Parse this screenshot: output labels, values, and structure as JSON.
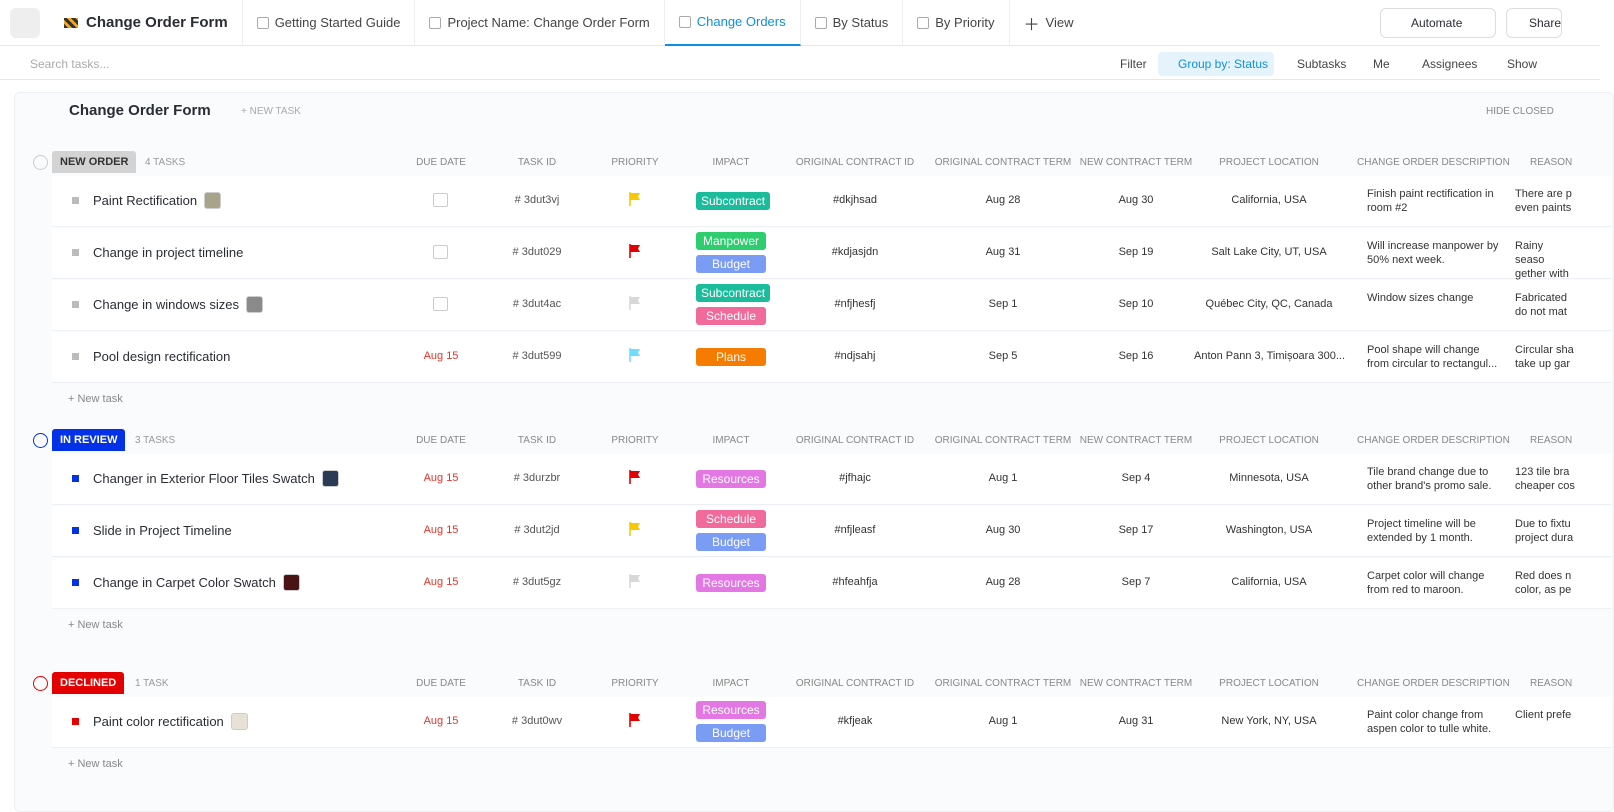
{
  "app": {
    "title": "Change Order Form",
    "tabs": [
      "Getting Started Guide",
      "Project Name: Change Order Form",
      "Change Orders",
      "By Status",
      "By Priority"
    ],
    "active_tab": 2,
    "add_view": "View",
    "automate": "Automate",
    "share": "Share"
  },
  "toolbar": {
    "search_placeholder": "Search tasks...",
    "filter": "Filter",
    "group_by": "Group by: Status",
    "subtasks": "Subtasks",
    "me": "Me",
    "assignees": "Assignees",
    "show": "Show"
  },
  "list": {
    "title": "Change Order Form",
    "new_task": "+ NEW TASK",
    "hide_closed": "HIDE CLOSED",
    "add_task": "+ New task",
    "columns": [
      "DUE DATE",
      "TASK ID",
      "PRIORITY",
      "IMPACT",
      "ORIGINAL CONTRACT ID",
      "ORIGINAL CONTRACT TERM",
      "NEW CONTRACT TERM",
      "PROJECT LOCATION",
      "CHANGE ORDER DESCRIPTION",
      "REASON"
    ],
    "impact_colors": {
      "Subcontract": "#1bbc9c",
      "Manpower": "#2ecd6f",
      "Budget": "#7b9cf5",
      "Schedule": "#f06b9a",
      "Plans": "#f57c00",
      "Resources": "#e377e3"
    },
    "groups": [
      {
        "status": "NEW ORDER",
        "count": "4 TASKS",
        "color": "#d3d3d3",
        "text_color": "#333333",
        "tasks": [
          {
            "name": "Paint Rectification",
            "thumb": "#a8a48a",
            "due": null,
            "id": "# 3dut3vj",
            "priority": "#f8c900",
            "impact": [
              "Subcontract"
            ],
            "contract_id": "#dkjhsad",
            "term": "Aug 28",
            "new_term": "Aug 30",
            "location": "California, USA",
            "description": "Finish paint rectification in room #2",
            "reason": "There are p even paints"
          },
          {
            "name": "Change in project timeline",
            "thumb": null,
            "due": null,
            "id": "# 3dut029",
            "priority": "#e50000",
            "impact": [
              "Manpower",
              "Budget"
            ],
            "contract_id": "#kdjasjdn",
            "term": "Aug 31",
            "new_term": "Sep 19",
            "location": "Salt Lake City, UT, USA",
            "description": "Will increase manpower by 50% next week.",
            "reason": "Rainy seaso gether with"
          },
          {
            "name": "Change in windows sizes",
            "thumb": "#8a8a8a",
            "due": null,
            "id": "# 3dut4ac",
            "priority": "#d8d8d8",
            "impact": [
              "Subcontract",
              "Schedule"
            ],
            "contract_id": "#nfjhesfj",
            "term": "Sep 1",
            "new_term": "Sep 10",
            "location": "Québec City, QC, Canada",
            "description": "Window sizes change",
            "reason": "Fabricated do not mat"
          },
          {
            "name": "Pool design rectification",
            "thumb": null,
            "due": "Aug 15",
            "id": "# 3dut599",
            "priority": "#6fddff",
            "impact": [
              "Plans"
            ],
            "contract_id": "#ndjsahj",
            "term": "Sep 5",
            "new_term": "Sep 16",
            "location": "Anton Pann 3, Timișoara 300...",
            "description": "Pool shape will change from circular to rectangul...",
            "reason": "Circular sha take up gar"
          }
        ]
      },
      {
        "status": "IN REVIEW",
        "count": "3 TASKS",
        "color": "#0231e8",
        "text_color": "#ffffff",
        "tasks": [
          {
            "name": "Changer in Exterior Floor Tiles Swatch",
            "thumb": "#2b3a55",
            "due": "Aug 15",
            "id": "# 3durzbr",
            "priority": "#e50000",
            "impact": [
              "Resources"
            ],
            "contract_id": "#jfhajc",
            "term": "Aug 1",
            "new_term": "Sep 4",
            "location": "Minnesota, USA",
            "description": "Tile brand change due to other brand's promo sale.",
            "reason": "123 tile bra cheaper cos"
          },
          {
            "name": "Slide in Project Timeline",
            "thumb": null,
            "due": "Aug 15",
            "id": "# 3dut2jd",
            "priority": "#f8c900",
            "impact": [
              "Schedule",
              "Budget"
            ],
            "contract_id": "#nfjleasf",
            "term": "Aug 30",
            "new_term": "Sep 17",
            "location": "Washington, USA",
            "description": "Project timeline will be extended by 1 month.",
            "reason": "Due to fixtu project dura"
          },
          {
            "name": "Change in Carpet Color Swatch",
            "thumb": "#4a1414",
            "due": "Aug 15",
            "id": "# 3dut5gz",
            "priority": "#d8d8d8",
            "impact": [
              "Resources"
            ],
            "contract_id": "#hfeahfja",
            "term": "Aug 28",
            "new_term": "Sep 7",
            "location": "California, USA",
            "description": "Carpet color will change from red to maroon.",
            "reason": "Red does n color, as pe"
          }
        ]
      },
      {
        "status": "DECLINED",
        "count": "1 TASK",
        "color": "#e50000",
        "text_color": "#ffffff",
        "tasks": [
          {
            "name": "Paint color rectification",
            "thumb": "#e8e2d6",
            "due": "Aug 15",
            "id": "# 3dut0wv",
            "priority": "#e50000",
            "impact": [
              "Resources",
              "Budget"
            ],
            "contract_id": "#kfjeak",
            "term": "Aug 1",
            "new_term": "Aug 31",
            "location": "New York, NY, USA",
            "description": "Paint color change from aspen color to tulle white.",
            "reason": "Client prefe"
          }
        ]
      }
    ]
  }
}
